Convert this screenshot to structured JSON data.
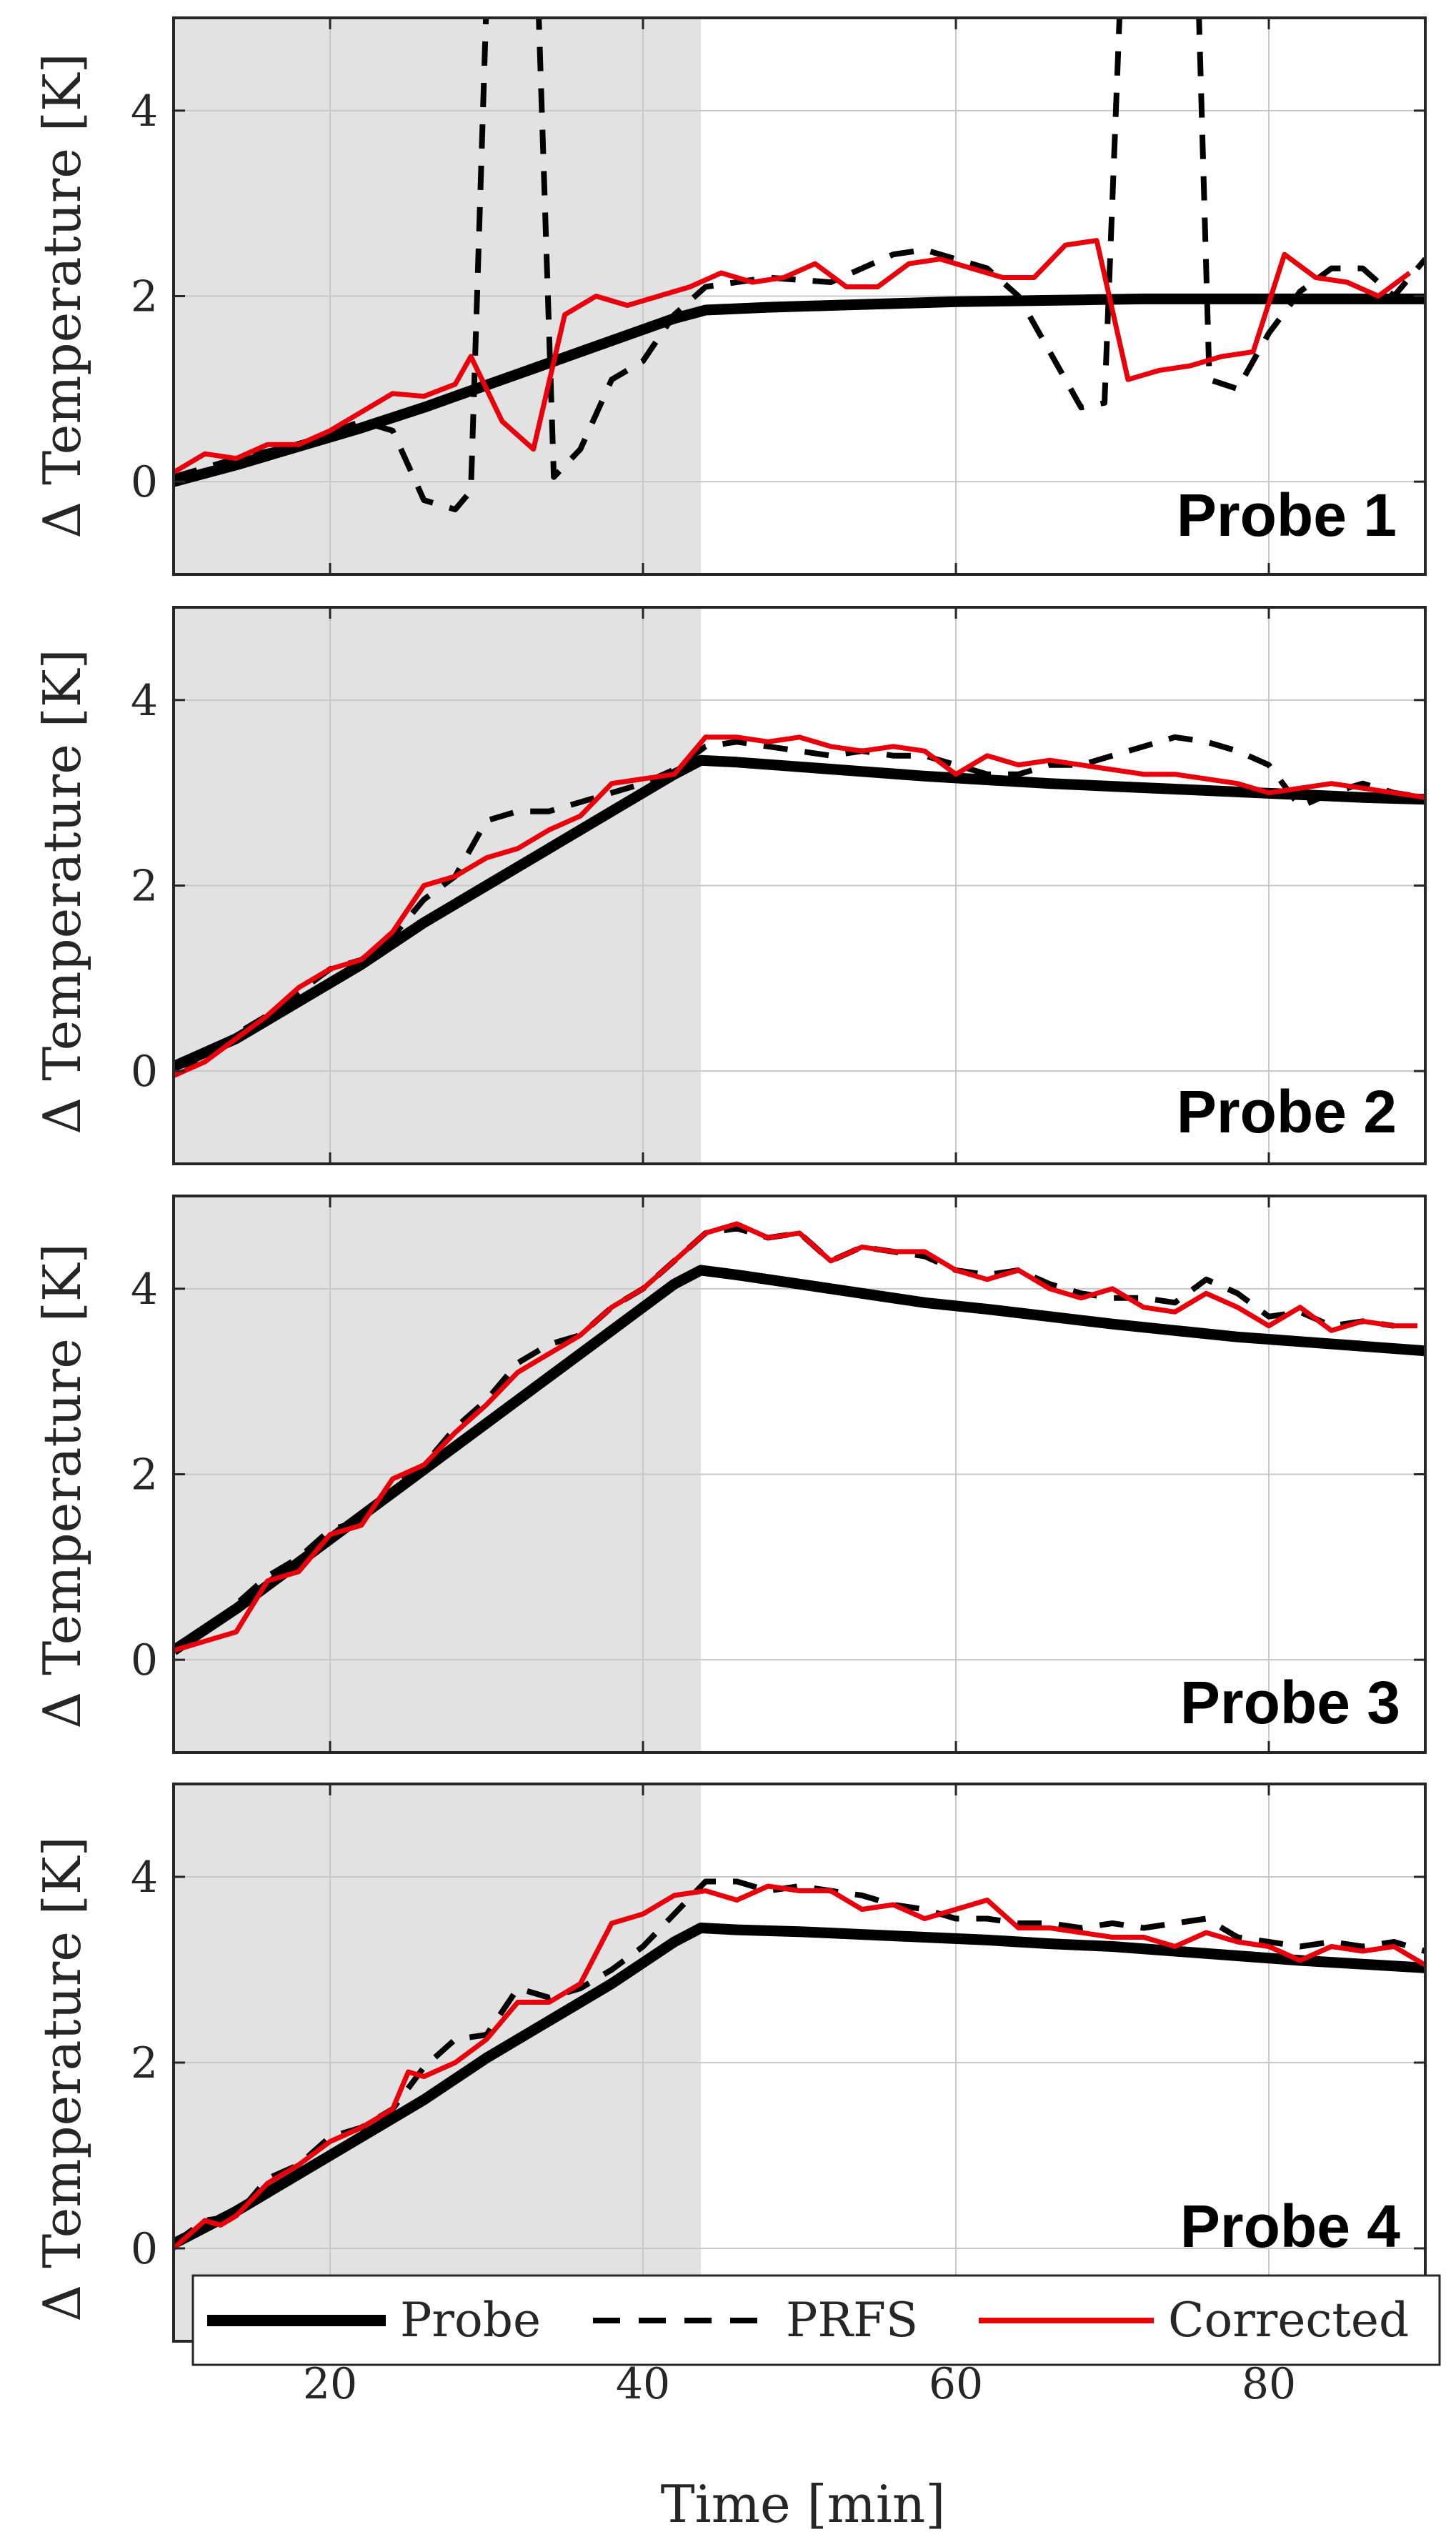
{
  "figure": {
    "xlabel": "Time [min]",
    "ylabel": "Δ Temperature [K]",
    "colors": {
      "probe": "#000000",
      "prfs": "#000000",
      "corrected": "#e8000b",
      "shade": "#e2e2e2",
      "grid": "#c8c8c8"
    }
  },
  "legend": {
    "items": [
      {
        "label": "Probe",
        "style": "solid-black"
      },
      {
        "label": "PRFS",
        "style": "dashed-black"
      },
      {
        "label": "Corrected",
        "style": "solid-red"
      }
    ]
  },
  "chart_data": [
    {
      "type": "line",
      "title": "Probe 1",
      "xlim": [
        10,
        90
      ],
      "ylim": [
        -1,
        5
      ],
      "xticks": [
        20,
        40,
        60,
        80
      ],
      "yticks": [
        0,
        2,
        4
      ],
      "shaded_x": [
        10,
        43.7
      ],
      "grid": true,
      "series": [
        {
          "name": "Probe",
          "style": "solid-black",
          "x": [
            10,
            14,
            18,
            22,
            26,
            30,
            34,
            38,
            42,
            44,
            48,
            52,
            56,
            60,
            64,
            68,
            72,
            76,
            80,
            84,
            88,
            90
          ],
          "y": [
            0,
            0.18,
            0.38,
            0.58,
            0.8,
            1.04,
            1.28,
            1.52,
            1.76,
            1.85,
            1.88,
            1.9,
            1.92,
            1.94,
            1.95,
            1.96,
            1.97,
            1.97,
            1.97,
            1.97,
            1.97,
            1.97
          ]
        },
        {
          "name": "PRFS",
          "style": "dashed-black",
          "x": [
            10,
            14,
            18,
            22,
            24,
            26,
            28,
            29,
            30,
            33.3,
            34.3,
            36,
            38,
            40,
            42,
            44,
            48,
            52,
            56,
            58,
            62,
            64,
            66,
            68,
            69.5,
            70.5,
            75.5,
            76.2,
            78,
            80,
            82,
            84,
            86,
            88,
            90
          ],
          "y": [
            0.05,
            0.25,
            0.4,
            0.65,
            0.55,
            -0.2,
            -0.3,
            -0.1,
            5.2,
            5.2,
            0.05,
            0.35,
            1.1,
            1.3,
            1.8,
            2.1,
            2.2,
            2.15,
            2.45,
            2.5,
            2.3,
            2.0,
            1.4,
            0.8,
            0.85,
            5.2,
            5.2,
            1.1,
            1.0,
            1.6,
            2.05,
            2.3,
            2.3,
            2.0,
            2.4
          ]
        },
        {
          "name": "Corrected",
          "style": "solid-red",
          "x": [
            10,
            12,
            14,
            16,
            18,
            20,
            22,
            24,
            26,
            28,
            29,
            31,
            33,
            35,
            37,
            39,
            41,
            43,
            45,
            47,
            49,
            51,
            53,
            55,
            57,
            59,
            61,
            63,
            65,
            67,
            69,
            71,
            73,
            75,
            77,
            79,
            81,
            83,
            85,
            87,
            89
          ],
          "y": [
            0.1,
            0.3,
            0.25,
            0.4,
            0.4,
            0.55,
            0.75,
            0.95,
            0.92,
            1.05,
            1.35,
            0.65,
            0.35,
            1.8,
            2.0,
            1.9,
            2.0,
            2.1,
            2.25,
            2.15,
            2.2,
            2.35,
            2.1,
            2.1,
            2.35,
            2.4,
            2.3,
            2.2,
            2.2,
            2.55,
            2.6,
            1.1,
            1.2,
            1.25,
            1.35,
            1.4,
            2.45,
            2.2,
            2.15,
            2.0,
            2.25
          ]
        }
      ]
    },
    {
      "type": "line",
      "title": "Probe 2",
      "xlim": [
        10,
        90
      ],
      "ylim": [
        -1,
        5
      ],
      "xticks": [
        20,
        40,
        60,
        80
      ],
      "yticks": [
        0,
        2,
        4
      ],
      "shaded_x": [
        10,
        43.7
      ],
      "grid": true,
      "series": [
        {
          "name": "Probe",
          "style": "solid-black",
          "x": [
            10,
            14,
            18,
            22,
            26,
            30,
            34,
            38,
            42,
            43.7,
            46,
            50,
            54,
            58,
            62,
            66,
            70,
            74,
            78,
            82,
            86,
            90
          ],
          "y": [
            0.05,
            0.35,
            0.75,
            1.15,
            1.6,
            2.0,
            2.4,
            2.8,
            3.2,
            3.35,
            3.33,
            3.28,
            3.23,
            3.18,
            3.14,
            3.1,
            3.07,
            3.04,
            3.01,
            2.98,
            2.95,
            2.93
          ]
        },
        {
          "name": "PRFS",
          "style": "dashed-black",
          "x": [
            10,
            12,
            14,
            16,
            18,
            20,
            22,
            24,
            26,
            28,
            30,
            32,
            34,
            36,
            38,
            40,
            42,
            44,
            46,
            48,
            50,
            52,
            54,
            56,
            58,
            60,
            62,
            64,
            66,
            68,
            70,
            72,
            74,
            76,
            78,
            80,
            82,
            84,
            86,
            88,
            90
          ],
          "y": [
            0.05,
            0.1,
            0.4,
            0.6,
            0.85,
            1.1,
            1.2,
            1.45,
            1.85,
            2.1,
            2.7,
            2.8,
            2.8,
            2.9,
            3.0,
            3.1,
            3.25,
            3.5,
            3.55,
            3.5,
            3.45,
            3.4,
            3.45,
            3.4,
            3.4,
            3.3,
            3.2,
            3.2,
            3.3,
            3.3,
            3.4,
            3.5,
            3.6,
            3.55,
            3.45,
            3.3,
            2.85,
            3.0,
            3.1,
            3.0,
            2.95
          ]
        },
        {
          "name": "Corrected",
          "style": "solid-red",
          "x": [
            10,
            12,
            14,
            16,
            18,
            20,
            22,
            24,
            26,
            28,
            30,
            32,
            34,
            36,
            38,
            40,
            42,
            44,
            46,
            48,
            50,
            52,
            54,
            56,
            58,
            60,
            62,
            64,
            66,
            68,
            70,
            72,
            74,
            76,
            78,
            80,
            82,
            84,
            86,
            88,
            90
          ],
          "y": [
            -0.05,
            0.1,
            0.35,
            0.6,
            0.9,
            1.1,
            1.2,
            1.5,
            2.0,
            2.1,
            2.3,
            2.4,
            2.6,
            2.75,
            3.1,
            3.15,
            3.2,
            3.6,
            3.6,
            3.55,
            3.6,
            3.5,
            3.45,
            3.5,
            3.45,
            3.2,
            3.4,
            3.3,
            3.35,
            3.3,
            3.25,
            3.2,
            3.2,
            3.15,
            3.1,
            3.0,
            3.05,
            3.1,
            3.05,
            3.0,
            2.95
          ]
        }
      ]
    },
    {
      "type": "line",
      "title": "Probe 3",
      "xlim": [
        10,
        90
      ],
      "ylim": [
        -1,
        5
      ],
      "xticks": [
        20,
        40,
        60,
        80
      ],
      "yticks": [
        0,
        2,
        4
      ],
      "shaded_x": [
        10,
        43.7
      ],
      "grid": true,
      "series": [
        {
          "name": "Probe",
          "style": "solid-black",
          "x": [
            10,
            14,
            18,
            22,
            26,
            30,
            34,
            38,
            42,
            43.7,
            46,
            50,
            54,
            58,
            62,
            66,
            70,
            74,
            78,
            82,
            86,
            90
          ],
          "y": [
            0.1,
            0.55,
            1.05,
            1.55,
            2.05,
            2.55,
            3.05,
            3.55,
            4.05,
            4.2,
            4.15,
            4.05,
            3.95,
            3.85,
            3.78,
            3.7,
            3.62,
            3.55,
            3.48,
            3.43,
            3.38,
            3.33
          ]
        },
        {
          "name": "PRFS",
          "style": "dashed-black",
          "x": [
            10,
            12,
            14,
            16,
            18,
            20,
            22,
            24,
            26,
            28,
            30,
            32,
            34,
            36,
            38,
            40,
            42,
            44,
            46,
            48,
            50,
            52,
            54,
            56,
            58,
            60,
            62,
            64,
            66,
            68,
            70,
            72,
            74,
            76,
            78,
            80,
            82,
            84,
            86,
            88
          ],
          "y": [
            0.1,
            0.3,
            0.6,
            0.9,
            1.1,
            1.4,
            1.5,
            1.9,
            2.1,
            2.5,
            2.8,
            3.2,
            3.4,
            3.5,
            3.8,
            4.0,
            4.3,
            4.6,
            4.65,
            4.55,
            4.6,
            4.3,
            4.45,
            4.4,
            4.35,
            4.2,
            4.15,
            4.2,
            4.05,
            3.95,
            3.9,
            3.9,
            3.85,
            4.1,
            3.95,
            3.7,
            3.75,
            3.6,
            3.65,
            3.6
          ]
        },
        {
          "name": "Corrected",
          "style": "solid-red",
          "x": [
            10,
            12,
            14,
            16,
            18,
            20,
            22,
            24,
            26,
            28,
            30,
            32,
            34,
            36,
            38,
            40,
            42,
            44,
            46,
            48,
            50,
            52,
            54,
            56,
            58,
            60,
            62,
            64,
            66,
            68,
            70,
            72,
            74,
            76,
            78,
            80,
            82,
            84,
            86,
            88,
            89.5
          ],
          "y": [
            0.1,
            0.2,
            0.3,
            0.85,
            0.95,
            1.35,
            1.45,
            1.95,
            2.1,
            2.45,
            2.75,
            3.1,
            3.3,
            3.5,
            3.8,
            4.0,
            4.3,
            4.6,
            4.7,
            4.55,
            4.6,
            4.3,
            4.45,
            4.4,
            4.4,
            4.2,
            4.1,
            4.2,
            4.0,
            3.9,
            4.0,
            3.8,
            3.75,
            3.95,
            3.8,
            3.6,
            3.8,
            3.55,
            3.65,
            3.6,
            3.6
          ]
        }
      ]
    },
    {
      "type": "line",
      "title": "Probe 4",
      "xlim": [
        10,
        90
      ],
      "ylim": [
        -1,
        5
      ],
      "xticks": [
        20,
        40,
        60,
        80
      ],
      "yticks": [
        0,
        2,
        4
      ],
      "shaded_x": [
        10,
        43.7
      ],
      "grid": true,
      "series": [
        {
          "name": "Probe",
          "style": "solid-black",
          "x": [
            10,
            14,
            18,
            22,
            26,
            30,
            34,
            38,
            42,
            43.7,
            46,
            50,
            54,
            58,
            62,
            66,
            70,
            74,
            78,
            82,
            86,
            90
          ],
          "y": [
            0.05,
            0.4,
            0.8,
            1.2,
            1.6,
            2.05,
            2.45,
            2.85,
            3.3,
            3.45,
            3.43,
            3.41,
            3.38,
            3.35,
            3.32,
            3.28,
            3.25,
            3.2,
            3.15,
            3.1,
            3.06,
            3.02
          ]
        },
        {
          "name": "PRFS",
          "style": "dashed-black",
          "x": [
            10,
            12,
            14,
            16,
            18,
            20,
            22,
            24,
            26,
            28,
            30,
            32,
            34,
            36,
            38,
            40,
            42,
            44,
            46,
            48,
            50,
            52,
            54,
            56,
            58,
            60,
            62,
            64,
            66,
            68,
            70,
            72,
            74,
            76,
            78,
            80,
            82,
            84,
            86,
            88,
            90
          ],
          "y": [
            0.05,
            0.3,
            0.35,
            0.75,
            0.9,
            1.2,
            1.3,
            1.5,
            1.95,
            2.25,
            2.3,
            2.8,
            2.7,
            2.8,
            3.0,
            3.25,
            3.6,
            3.95,
            3.95,
            3.85,
            3.9,
            3.85,
            3.8,
            3.7,
            3.65,
            3.55,
            3.55,
            3.5,
            3.5,
            3.45,
            3.5,
            3.45,
            3.5,
            3.55,
            3.35,
            3.3,
            3.25,
            3.3,
            3.25,
            3.3,
            3.2
          ]
        },
        {
          "name": "Corrected",
          "style": "solid-red",
          "x": [
            10,
            12,
            13,
            14,
            16,
            18,
            20,
            22,
            24,
            25,
            26,
            28,
            30,
            32,
            34,
            36,
            38,
            40,
            42,
            44,
            46,
            48,
            50,
            52,
            54,
            56,
            58,
            60,
            62,
            64,
            66,
            68,
            70,
            72,
            74,
            76,
            78,
            80,
            82,
            84,
            86,
            88,
            90
          ],
          "y": [
            0.0,
            0.3,
            0.25,
            0.35,
            0.7,
            0.9,
            1.15,
            1.3,
            1.5,
            1.9,
            1.85,
            2.0,
            2.25,
            2.65,
            2.65,
            2.85,
            3.5,
            3.6,
            3.8,
            3.85,
            3.75,
            3.9,
            3.85,
            3.85,
            3.65,
            3.7,
            3.55,
            3.65,
            3.75,
            3.45,
            3.45,
            3.4,
            3.35,
            3.35,
            3.25,
            3.4,
            3.3,
            3.25,
            3.1,
            3.25,
            3.2,
            3.25,
            3.05
          ]
        }
      ]
    }
  ]
}
